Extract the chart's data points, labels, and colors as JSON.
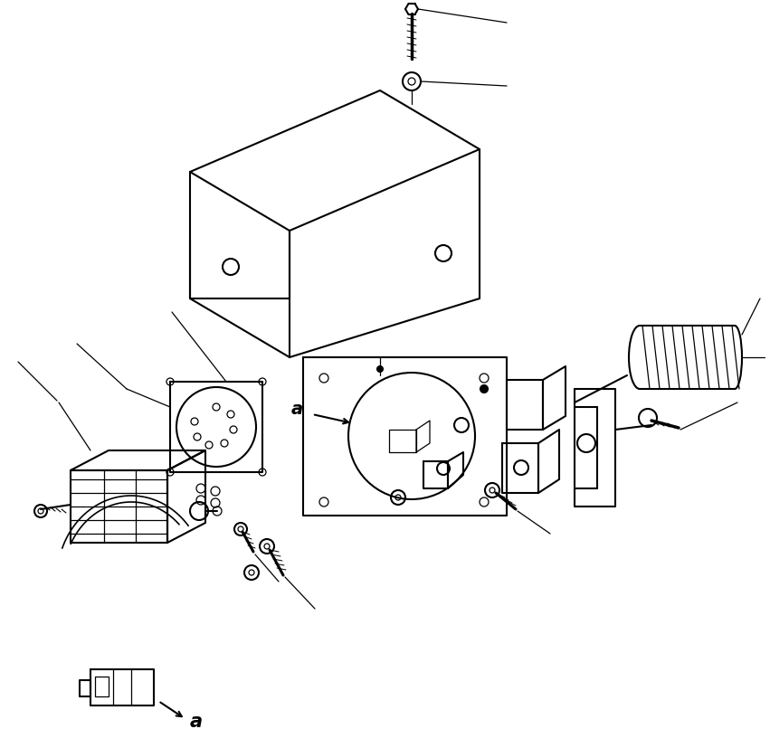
{
  "bg_color": "#ffffff",
  "line_color": "#000000",
  "lw": 1.5,
  "lw_thin": 0.9,
  "lw_thick": 2.2,
  "figsize": [
    8.51,
    8.27
  ],
  "dpi": 100
}
